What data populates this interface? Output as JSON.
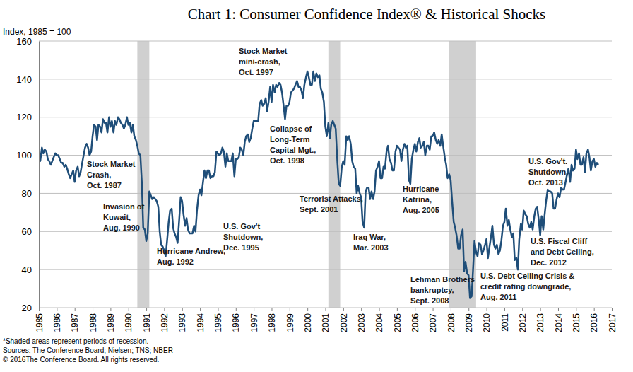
{
  "chart_data": {
    "type": "line",
    "title": "Chart 1: Consumer Confidence Index® & Historical Shocks",
    "y_label": "Index, 1985 = 100",
    "color": "#1f4e79",
    "grid": true,
    "xlim": [
      1985,
      2017
    ],
    "xticks": [
      1985,
      1986,
      1987,
      1988,
      1989,
      1990,
      1991,
      1992,
      1993,
      1994,
      1995,
      1996,
      1997,
      1998,
      1999,
      2000,
      2001,
      2002,
      2003,
      2004,
      2005,
      2006,
      2007,
      2008,
      2009,
      2010,
      2011,
      2012,
      2013,
      2014,
      2015,
      2016,
      2017
    ],
    "ylim": [
      20,
      160
    ],
    "yticks": [
      20,
      40,
      60,
      80,
      100,
      120,
      140,
      160
    ],
    "recessions": [
      [
        1990.5,
        1991.17
      ],
      [
        2001.17,
        2001.83
      ],
      [
        2007.92,
        2009.42
      ]
    ],
    "x": [
      1985,
      1985.08,
      1985.17,
      1985.25,
      1985.33,
      1985.42,
      1985.5,
      1985.58,
      1985.67,
      1985.75,
      1985.83,
      1985.92,
      1986,
      1986.08,
      1986.17,
      1986.25,
      1986.33,
      1986.42,
      1986.5,
      1986.58,
      1986.67,
      1986.75,
      1986.83,
      1986.92,
      1987,
      1987.08,
      1987.17,
      1987.25,
      1987.33,
      1987.42,
      1987.5,
      1987.58,
      1987.67,
      1987.75,
      1987.83,
      1987.92,
      1988,
      1988.08,
      1988.17,
      1988.25,
      1988.33,
      1988.42,
      1988.5,
      1988.58,
      1988.67,
      1988.75,
      1988.83,
      1988.92,
      1989,
      1989.08,
      1989.17,
      1989.25,
      1989.33,
      1989.42,
      1989.5,
      1989.58,
      1989.67,
      1989.75,
      1989.83,
      1989.92,
      1990,
      1990.08,
      1990.17,
      1990.25,
      1990.33,
      1990.42,
      1990.5,
      1990.58,
      1990.67,
      1990.75,
      1990.83,
      1990.92,
      1991,
      1991.08,
      1991.17,
      1991.25,
      1991.33,
      1991.42,
      1991.5,
      1991.58,
      1991.67,
      1991.75,
      1991.83,
      1991.92,
      1992,
      1992.08,
      1992.17,
      1992.25,
      1992.33,
      1992.42,
      1992.5,
      1992.58,
      1992.67,
      1992.75,
      1992.83,
      1992.92,
      1993,
      1993.08,
      1993.17,
      1993.25,
      1993.33,
      1993.42,
      1993.5,
      1993.58,
      1993.67,
      1993.75,
      1993.83,
      1993.92,
      1994,
      1994.08,
      1994.17,
      1994.25,
      1994.33,
      1994.42,
      1994.5,
      1994.58,
      1994.67,
      1994.75,
      1994.83,
      1994.92,
      1995,
      1995.08,
      1995.17,
      1995.25,
      1995.33,
      1995.42,
      1995.5,
      1995.58,
      1995.67,
      1995.75,
      1995.83,
      1995.92,
      1996,
      1996.08,
      1996.17,
      1996.25,
      1996.33,
      1996.42,
      1996.5,
      1996.58,
      1996.67,
      1996.75,
      1996.83,
      1996.92,
      1997,
      1997.08,
      1997.17,
      1997.25,
      1997.33,
      1997.42,
      1997.5,
      1997.58,
      1997.67,
      1997.75,
      1997.83,
      1997.92,
      1998,
      1998.08,
      1998.17,
      1998.25,
      1998.33,
      1998.42,
      1998.5,
      1998.58,
      1998.67,
      1998.75,
      1998.83,
      1998.92,
      1999,
      1999.08,
      1999.17,
      1999.25,
      1999.33,
      1999.42,
      1999.5,
      1999.58,
      1999.67,
      1999.75,
      1999.83,
      1999.92,
      2000,
      2000.08,
      2000.17,
      2000.25,
      2000.33,
      2000.42,
      2000.5,
      2000.58,
      2000.67,
      2000.75,
      2000.83,
      2000.92,
      2001,
      2001.08,
      2001.17,
      2001.25,
      2001.33,
      2001.42,
      2001.5,
      2001.58,
      2001.67,
      2001.75,
      2001.83,
      2001.92,
      2002,
      2002.08,
      2002.17,
      2002.25,
      2002.33,
      2002.42,
      2002.5,
      2002.58,
      2002.67,
      2002.75,
      2002.83,
      2002.92,
      2003,
      2003.08,
      2003.17,
      2003.25,
      2003.33,
      2003.42,
      2003.5,
      2003.58,
      2003.67,
      2003.75,
      2003.83,
      2003.92,
      2004,
      2004.08,
      2004.17,
      2004.25,
      2004.33,
      2004.42,
      2004.5,
      2004.58,
      2004.67,
      2004.75,
      2004.83,
      2004.92,
      2005,
      2005.08,
      2005.17,
      2005.25,
      2005.33,
      2005.42,
      2005.5,
      2005.58,
      2005.67,
      2005.75,
      2005.83,
      2005.92,
      2006,
      2006.08,
      2006.17,
      2006.25,
      2006.33,
      2006.42,
      2006.5,
      2006.58,
      2006.67,
      2006.75,
      2006.83,
      2006.92,
      2007,
      2007.08,
      2007.17,
      2007.25,
      2007.33,
      2007.42,
      2007.5,
      2007.58,
      2007.67,
      2007.75,
      2007.83,
      2007.92,
      2008,
      2008.08,
      2008.17,
      2008.25,
      2008.33,
      2008.42,
      2008.5,
      2008.58,
      2008.67,
      2008.75,
      2008.83,
      2008.92,
      2009,
      2009.08,
      2009.17,
      2009.25,
      2009.33,
      2009.42,
      2009.5,
      2009.58,
      2009.67,
      2009.75,
      2009.83,
      2009.92,
      2010,
      2010.08,
      2010.17,
      2010.25,
      2010.33,
      2010.42,
      2010.5,
      2010.58,
      2010.67,
      2010.75,
      2010.83,
      2010.92,
      2011,
      2011.08,
      2011.17,
      2011.25,
      2011.33,
      2011.42,
      2011.5,
      2011.58,
      2011.67,
      2011.75,
      2011.83,
      2011.92,
      2012,
      2012.08,
      2012.17,
      2012.25,
      2012.33,
      2012.42,
      2012.5,
      2012.58,
      2012.67,
      2012.75,
      2012.83,
      2012.92,
      2013,
      2013.08,
      2013.17,
      2013.25,
      2013.33,
      2013.42,
      2013.5,
      2013.58,
      2013.67,
      2013.75,
      2013.83,
      2013.92,
      2014,
      2014.08,
      2014.17,
      2014.25,
      2014.33,
      2014.42,
      2014.5,
      2014.58,
      2014.67,
      2014.75,
      2014.83,
      2014.92,
      2015,
      2015.08,
      2015.17,
      2015.25,
      2015.33,
      2015.42,
      2015.5,
      2015.58,
      2015.67,
      2015.75,
      2015.83,
      2015.92,
      2016,
      2016.08,
      2016.17,
      2016.25
    ],
    "values": [
      102,
      97,
      104,
      101,
      103,
      102,
      98,
      97,
      95,
      97,
      99,
      101,
      100,
      100,
      98,
      96,
      96,
      94,
      95,
      93,
      90,
      88,
      90,
      92,
      86,
      92,
      94,
      89,
      91,
      96,
      100,
      104,
      106,
      104,
      100,
      102,
      110,
      116,
      115,
      108,
      116,
      115,
      112,
      119,
      117,
      117,
      112,
      120,
      115,
      118,
      112,
      118,
      116,
      120,
      119,
      117,
      116,
      114,
      116,
      120,
      116,
      117,
      112,
      116,
      110,
      108,
      105,
      101,
      100,
      86,
      62,
      61,
      55,
      59,
      81,
      79,
      77,
      78,
      77,
      76,
      73,
      60,
      53,
      52,
      50,
      47,
      56,
      65,
      71,
      72,
      62,
      59,
      57,
      54,
      65,
      78,
      76,
      69,
      63,
      67,
      61,
      59,
      59,
      59,
      63,
      60,
      71,
      79,
      82,
      79,
      86,
      92,
      88,
      92,
      92,
      88,
      89,
      89,
      91,
      102,
      101,
      100,
      101,
      104,
      102,
      94,
      101,
      97,
      97,
      97,
      101,
      89,
      98,
      98,
      99,
      104,
      103,
      100,
      107,
      110,
      111,
      107,
      109,
      114,
      118,
      118,
      118,
      118,
      127,
      129,
      126,
      127,
      130,
      123,
      128,
      136,
      128,
      137,
      133,
      137,
      136,
      138,
      137,
      133,
      126,
      119,
      126,
      126,
      128,
      133,
      134,
      135,
      137,
      139,
      136,
      136,
      134,
      130,
      137,
      141,
      144,
      141,
      137,
      137,
      144,
      139,
      143,
      141,
      142,
      135,
      133,
      128,
      115,
      110,
      117,
      109,
      116,
      118,
      116,
      114,
      97,
      85,
      84,
      94,
      97,
      95,
      110,
      108,
      110,
      106,
      97,
      94,
      93,
      80,
      84,
      80,
      78,
      65,
      62,
      81,
      83,
      83,
      77,
      81,
      77,
      81,
      92,
      94,
      97,
      88,
      88,
      94,
      93,
      102,
      105,
      98,
      96,
      92,
      92,
      102,
      105,
      104,
      103,
      97,
      103,
      106,
      104,
      105,
      87,
      85,
      98,
      103,
      106,
      102,
      107,
      109,
      104,
      105,
      107,
      100,
      105,
      105,
      103,
      110,
      110,
      112,
      108,
      106,
      108,
      105,
      111,
      105,
      99,
      95,
      88,
      90,
      87,
      76,
      65,
      62,
      58,
      51,
      51,
      58,
      61,
      39,
      44,
      38,
      37,
      25,
      26,
      40,
      55,
      49,
      47,
      54,
      53,
      48,
      50,
      53,
      56,
      46,
      52,
      57,
      63,
      53,
      51,
      53,
      48,
      50,
      55,
      63,
      65,
      72,
      63,
      66,
      61,
      57,
      59,
      45,
      46,
      40,
      56,
      64,
      61,
      71,
      69,
      68,
      64,
      62,
      65,
      61,
      68,
      72,
      73,
      66,
      58,
      68,
      61,
      69,
      76,
      82,
      81,
      81,
      80,
      72,
      72,
      77,
      80,
      78,
      83,
      82,
      82,
      86,
      90,
      93,
      86,
      95,
      92,
      93,
      103,
      98,
      101,
      95,
      95,
      99,
      91,
      101,
      103,
      99,
      92,
      97,
      98,
      94,
      96,
      95
    ],
    "annotations": [
      [
        "Stock Market",
        "Crash,",
        "Oct. 1987"
      ],
      [
        "Invasion of",
        "Kuwait,",
        "Aug. 1990"
      ],
      [
        "Hurricane Andrew,",
        "Aug. 1992"
      ],
      [
        "U.S. Gov't",
        "Shutdown,",
        "Dec. 1995"
      ],
      [
        "Stock Market",
        "mini-crash,",
        "Oct. 1997"
      ],
      [
        "Collapse of",
        "Long-Term",
        "Capital Mgt.,",
        "Oct. 1998"
      ],
      [
        "Terrorist Attacks,",
        "Sept. 2001"
      ],
      [
        "Iraq War,",
        "Mar. 2003"
      ],
      [
        "Hurricane",
        "Katrina,",
        "Aug. 2005"
      ],
      [
        "Lehman Brothers",
        "bankruptcy,",
        "Sept. 2008"
      ],
      [
        "U.S. Debt Ceiling Crisis &",
        "credit rating downgrade,",
        "Aug. 2011"
      ],
      [
        "U.S. Fiscal Cliff",
        "and Debt Ceiling,",
        "Dec. 2012"
      ],
      [
        "U.S. Gov't.",
        "Shutdown,",
        "Oct. 2013"
      ]
    ],
    "notes": [
      "*Shaded areas represent periods of recession.",
      "Sources: The Conference Board; Nielsen; TNS; NBER",
      "© 2016The Conference Board. All rights reserved."
    ]
  }
}
